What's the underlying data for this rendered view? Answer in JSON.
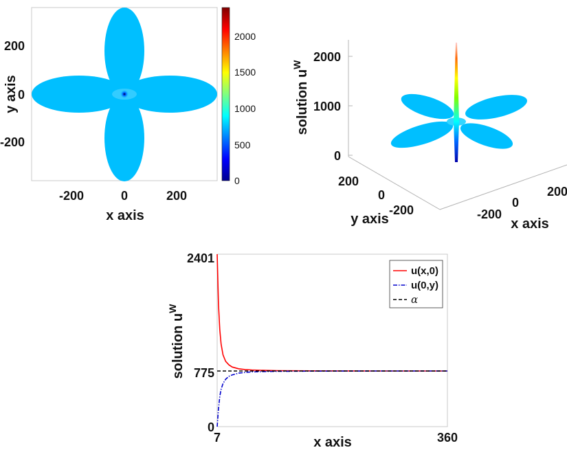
{
  "chart_data": [
    {
      "type": "heatmap",
      "description_shape": "four-petal domain colored by solution value",
      "xlabel": "x axis",
      "ylabel": "y axis",
      "xlim": [
        -360,
        360
      ],
      "ylim": [
        -360,
        360
      ],
      "xticks": [
        -200,
        0,
        200
      ],
      "yticks": [
        -200,
        0,
        200
      ],
      "colorbar": {
        "range": [
          0,
          2401
        ],
        "ticks": [
          0,
          500,
          1000,
          1500,
          2000
        ],
        "colormap": "jet"
      },
      "petal_value_approx": 775
    },
    {
      "type": "surface",
      "xlabel": "x axis",
      "ylabel": "y axis",
      "zlabel": "solution u^W",
      "xticks": [
        -200,
        0,
        200
      ],
      "yticks": [
        -200,
        0,
        200
      ],
      "zticks": [
        0,
        1000,
        2000
      ],
      "zlim": [
        0,
        2401
      ]
    },
    {
      "type": "line",
      "xlabel": "x axis",
      "ylabel": "solution u^W",
      "xlim": [
        7,
        360
      ],
      "ylim": [
        0,
        2401
      ],
      "xticks": [
        7,
        360
      ],
      "yticks": [
        0,
        775,
        2401
      ],
      "legend_position": "top-right",
      "series": [
        {
          "name": "u(x,0)",
          "color": "#ff0000",
          "style": "solid",
          "x": [
            7,
            9,
            11,
            13,
            16,
            20,
            25,
            30,
            40,
            50,
            60,
            80,
            100,
            150,
            200,
            250,
            300,
            360
          ],
          "y": [
            2401,
            1700,
            1350,
            1150,
            1000,
            910,
            860,
            830,
            805,
            795,
            788,
            783,
            780,
            777,
            776,
            775,
            775,
            775
          ]
        },
        {
          "name": "u(0,y)",
          "color": "#0000cc",
          "style": "dashdot",
          "x": [
            7,
            9,
            11,
            13,
            16,
            20,
            25,
            30,
            40,
            50,
            60,
            80,
            100,
            150,
            200,
            250,
            300,
            360
          ],
          "y": [
            0,
            250,
            420,
            520,
            600,
            660,
            700,
            720,
            745,
            755,
            762,
            767,
            770,
            773,
            774,
            775,
            775,
            775
          ]
        },
        {
          "name": "α",
          "color": "#000000",
          "style": "dashed",
          "x": [
            7,
            360
          ],
          "y": [
            775,
            775
          ]
        }
      ]
    }
  ],
  "colors": {
    "petal": "#00bfff",
    "spike_top": "#ff3300",
    "spike_bottom": "#0000cc"
  }
}
